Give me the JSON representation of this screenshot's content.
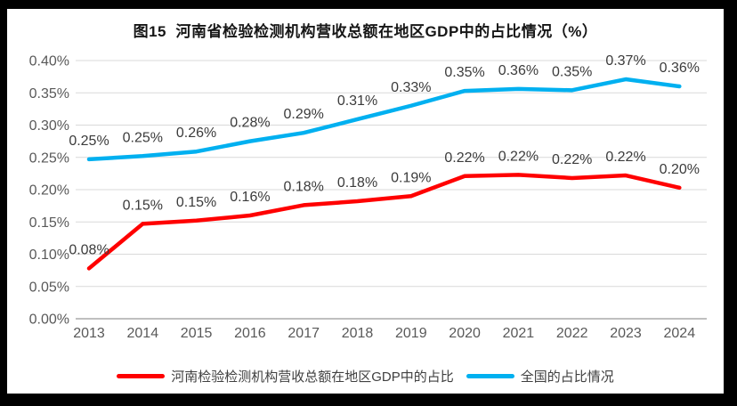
{
  "title": "图15  河南省检验检测机构营收总额在地区GDP中的占比情况（%）",
  "legend": [
    {
      "label": "河南检验检测机构营收总额在地区GDP中的占比"
    },
    {
      "label": "全国的占比情况"
    }
  ],
  "chart_data": {
    "type": "line",
    "title": "图15  河南省检验检测机构营收总额在地区GDP中的占比情况（%）",
    "categories": [
      "2013",
      "2014",
      "2015",
      "2016",
      "2017",
      "2018",
      "2019",
      "2020",
      "2021",
      "2022",
      "2023",
      "2024"
    ],
    "series": [
      {
        "id": "henan",
        "name": "河南检验检测机构营收总额在地区GDP中的占比",
        "color": "#FF0000",
        "values": [
          0.08,
          0.15,
          0.15,
          0.16,
          0.18,
          0.18,
          0.19,
          0.22,
          0.22,
          0.22,
          0.22,
          0.2
        ],
        "labels": [
          "0.08%",
          "0.15%",
          "0.15%",
          "0.16%",
          "0.18%",
          "0.18%",
          "0.19%",
          "0.22%",
          "0.22%",
          "0.22%",
          "0.22%",
          "0.20%"
        ],
        "values_precise": [
          0.078,
          0.147,
          0.152,
          0.16,
          0.176,
          0.182,
          0.19,
          0.221,
          0.223,
          0.218,
          0.222,
          0.203
        ]
      },
      {
        "id": "national",
        "name": "全国的占比情况",
        "color": "#00B0F0",
        "values": [
          0.25,
          0.25,
          0.26,
          0.28,
          0.29,
          0.31,
          0.33,
          0.35,
          0.36,
          0.35,
          0.37,
          0.36
        ],
        "labels": [
          "0.25%",
          "0.25%",
          "0.26%",
          "0.28%",
          "0.29%",
          "0.31%",
          "0.33%",
          "0.35%",
          "0.36%",
          "0.35%",
          "0.37%",
          "0.36%"
        ],
        "values_precise": [
          0.247,
          0.252,
          0.259,
          0.275,
          0.288,
          0.309,
          0.33,
          0.353,
          0.356,
          0.354,
          0.371,
          0.36
        ]
      }
    ],
    "y_axis": {
      "min": 0,
      "max": 0.4,
      "ticks": [
        {
          "value": 0.4,
          "label": "0.40%"
        },
        {
          "value": 0.35,
          "label": "0.35%"
        },
        {
          "value": 0.3,
          "label": "0.30%"
        },
        {
          "value": 0.25,
          "label": "0.25%"
        },
        {
          "value": 0.2,
          "label": "0.20%"
        },
        {
          "value": 0.15,
          "label": "0.15%"
        },
        {
          "value": 0.1,
          "label": "0.10%"
        },
        {
          "value": 0.05,
          "label": "0.05%"
        },
        {
          "value": 0.0,
          "label": "0.00%"
        }
      ]
    },
    "xlabel": "",
    "ylabel": "",
    "grid": true,
    "legend_position": "bottom",
    "colors": {
      "gridline": "#D9D9D9",
      "axis_line": "#BFBFBF",
      "tick_text": "#595959",
      "data_label": "#3B3B3B",
      "frame_border": "#000000",
      "background": "#FFFFFF"
    }
  }
}
